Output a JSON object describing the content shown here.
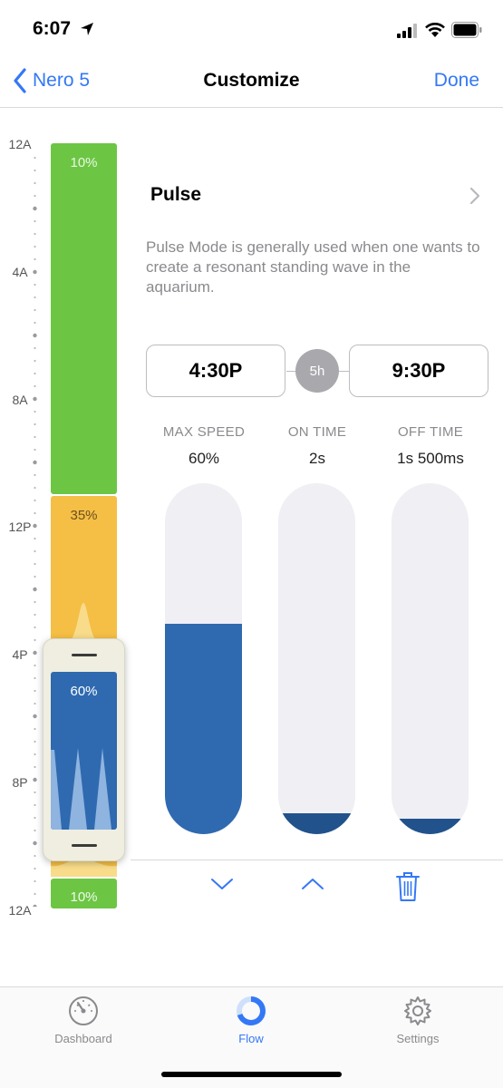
{
  "status_bar": {
    "time": "6:07"
  },
  "nav": {
    "back_label": "Nero 5",
    "title": "Customize",
    "done_label": "Done"
  },
  "timeline": {
    "labels": [
      "12A",
      "4A",
      "8A",
      "12P",
      "4P",
      "8P",
      "12A"
    ],
    "segments": [
      {
        "label": "10%",
        "color": "#6cc644"
      },
      {
        "label": "35%",
        "color": "#f5be45"
      },
      {
        "label": "10%",
        "color": "#6cc644"
      }
    ],
    "selected": {
      "label": "60%",
      "color": "#2f6ab0"
    }
  },
  "mode": {
    "title": "Pulse",
    "description": "Pulse Mode is generally used when one wants to create a resonant standing wave in the aquarium."
  },
  "schedule": {
    "start": "4:30P",
    "duration": "5h",
    "end": "9:30P"
  },
  "controls": [
    {
      "label": "MAX SPEED",
      "value": "60%",
      "level": 0.6
    },
    {
      "label": "ON TIME",
      "value": "2s",
      "level": 0.06
    },
    {
      "label": "OFF TIME",
      "value": "1s 500ms",
      "level": 0.045
    }
  ],
  "tabs": [
    {
      "label": "Dashboard",
      "icon": "gauge-icon"
    },
    {
      "label": "Flow",
      "icon": "flow-ring-icon"
    },
    {
      "label": "Settings",
      "icon": "gear-icon"
    }
  ],
  "colors": {
    "accent": "#3478f6",
    "fill": "#2f6ab0",
    "green": "#6cc644",
    "yellow": "#f5be45"
  }
}
